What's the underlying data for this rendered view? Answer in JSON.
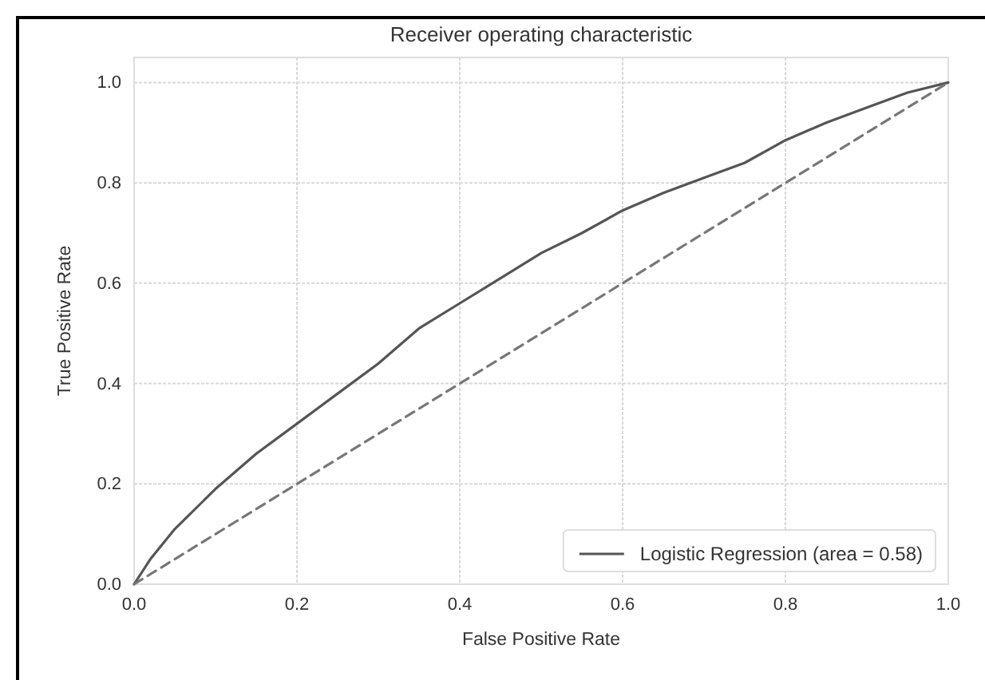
{
  "chart_data": {
    "type": "line",
    "title": "Receiver operating characteristic",
    "xlabel": "False Positive Rate",
    "ylabel": "True Positive Rate",
    "series": [
      {
        "name": "Logistic Regression (area = 0.58)",
        "color": "#555555",
        "line_style": "solid",
        "x": [
          0,
          0.02,
          0.05,
          0.1,
          0.15,
          0.2,
          0.25,
          0.3,
          0.35,
          0.4,
          0.45,
          0.5,
          0.55,
          0.6,
          0.65,
          0.7,
          0.75,
          0.8,
          0.85,
          0.9,
          0.95,
          1
        ],
        "values": [
          0,
          0.05,
          0.11,
          0.19,
          0.26,
          0.32,
          0.38,
          0.44,
          0.51,
          0.56,
          0.61,
          0.66,
          0.7,
          0.745,
          0.78,
          0.81,
          0.84,
          0.885,
          0.92,
          0.95,
          0.98,
          1
        ]
      },
      {
        "type": "line",
        "color": "#777777",
        "line_style": "dashed",
        "x": [
          0,
          1
        ],
        "values": [
          0,
          1
        ]
      }
    ],
    "xlim": [
      0,
      1
    ],
    "ylim": [
      0,
      1.05
    ],
    "xticks": [
      {
        "value": 0,
        "label": "0.0"
      },
      0.2,
      0.4,
      0.6,
      0.8,
      {
        "value": 1,
        "label": "1.0"
      }
    ],
    "yticks": [
      {
        "value": 0,
        "label": "0.0"
      },
      0.2,
      0.4,
      0.6,
      0.8,
      {
        "value": 1,
        "label": "1.0"
      }
    ],
    "grid": true,
    "legend": "bottom right"
  }
}
